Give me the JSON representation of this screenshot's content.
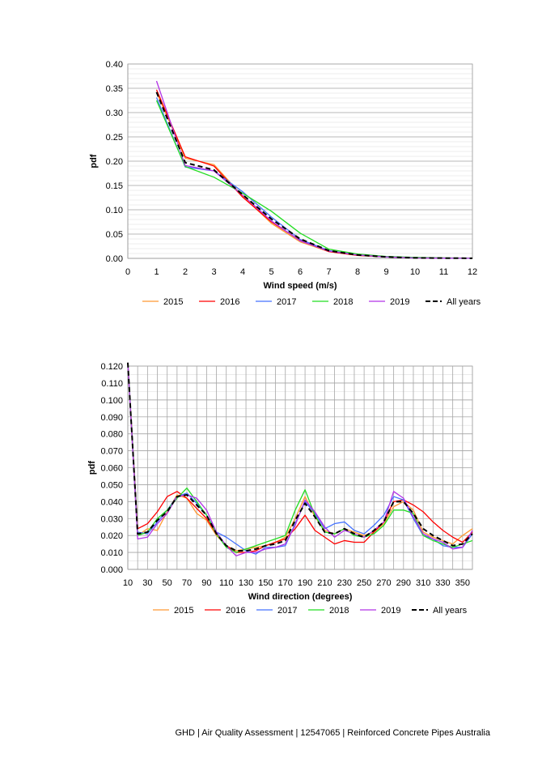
{
  "chart_data": [
    {
      "type": "line",
      "xlabel": "Wind speed (m/s)",
      "ylabel": "pdf",
      "xlim": [
        0,
        12
      ],
      "ylim": [
        0,
        0.4
      ],
      "x_ticks": [
        "0",
        "1",
        "2",
        "3",
        "4",
        "5",
        "6",
        "7",
        "8",
        "9",
        "10",
        "11",
        "12"
      ],
      "y_ticks": [
        "0.00",
        "0.05",
        "0.10",
        "0.15",
        "0.20",
        "0.25",
        "0.30",
        "0.35",
        "0.40"
      ],
      "grid": true,
      "legend_position": "bottom",
      "x": [
        1,
        2,
        3,
        4,
        5,
        6,
        7,
        8,
        9,
        10,
        11,
        12
      ],
      "series": [
        {
          "name": "2015",
          "color": "#FF9933",
          "dash": false,
          "values": [
            0.342,
            0.206,
            0.193,
            0.128,
            0.072,
            0.034,
            0.014,
            0.006,
            0.003,
            0.001,
            0.0005,
            0.0002
          ]
        },
        {
          "name": "2016",
          "color": "#FF0000",
          "dash": false,
          "values": [
            0.347,
            0.209,
            0.19,
            0.126,
            0.075,
            0.037,
            0.014,
            0.006,
            0.003,
            0.001,
            0.0005,
            0.0002
          ]
        },
        {
          "name": "2017",
          "color": "#4472FF",
          "dash": false,
          "values": [
            0.331,
            0.188,
            0.18,
            0.137,
            0.085,
            0.039,
            0.016,
            0.007,
            0.003,
            0.001,
            0.0005,
            0.0002
          ]
        },
        {
          "name": "2018",
          "color": "#22DD22",
          "dash": false,
          "values": [
            0.325,
            0.189,
            0.167,
            0.134,
            0.097,
            0.052,
            0.019,
            0.009,
            0.004,
            0.002,
            0.001,
            0.0003
          ]
        },
        {
          "name": "2019",
          "color": "#B233E6",
          "dash": false,
          "values": [
            0.365,
            0.191,
            0.18,
            0.13,
            0.077,
            0.036,
            0.015,
            0.007,
            0.003,
            0.001,
            0.0005,
            0.0002
          ]
        },
        {
          "name": "All years",
          "color": "#000000",
          "dash": true,
          "values": [
            0.342,
            0.197,
            0.182,
            0.131,
            0.081,
            0.04,
            0.016,
            0.007,
            0.003,
            0.001,
            0.0005,
            0.0002
          ]
        }
      ]
    },
    {
      "type": "line",
      "xlabel": "Wind direction (degrees)",
      "ylabel": "pdf",
      "xlim": [
        10,
        360
      ],
      "ylim": [
        0,
        0.12
      ],
      "x_ticks": [
        "10",
        "30",
        "50",
        "70",
        "90",
        "110",
        "130",
        "150",
        "170",
        "190",
        "210",
        "230",
        "250",
        "270",
        "290",
        "310",
        "330",
        "350"
      ],
      "y_ticks": [
        "0.000",
        "0.010",
        "0.020",
        "0.030",
        "0.040",
        "0.050",
        "0.060",
        "0.070",
        "0.080",
        "0.090",
        "0.100",
        "0.110",
        "0.120"
      ],
      "grid": true,
      "legend_position": "bottom",
      "x": [
        10,
        20,
        30,
        40,
        50,
        60,
        70,
        80,
        90,
        100,
        110,
        120,
        130,
        140,
        150,
        160,
        170,
        180,
        190,
        200,
        210,
        220,
        230,
        240,
        250,
        260,
        270,
        280,
        290,
        300,
        310,
        320,
        330,
        340,
        350,
        360
      ],
      "series": [
        {
          "name": "2015",
          "color": "#FF9933",
          "dash": false,
          "values": [
            0.122,
            0.02,
            0.024,
            0.023,
            0.034,
            0.044,
            0.042,
            0.033,
            0.029,
            0.02,
            0.014,
            0.011,
            0.012,
            0.013,
            0.014,
            0.016,
            0.019,
            0.03,
            0.043,
            0.031,
            0.023,
            0.021,
            0.024,
            0.022,
            0.02,
            0.022,
            0.027,
            0.037,
            0.04,
            0.035,
            0.022,
            0.019,
            0.017,
            0.015,
            0.02,
            0.024
          ]
        },
        {
          "name": "2016",
          "color": "#FF0000",
          "dash": false,
          "values": [
            0.122,
            0.024,
            0.027,
            0.034,
            0.043,
            0.046,
            0.042,
            0.036,
            0.03,
            0.021,
            0.014,
            0.01,
            0.01,
            0.011,
            0.014,
            0.016,
            0.018,
            0.024,
            0.032,
            0.023,
            0.019,
            0.015,
            0.017,
            0.016,
            0.016,
            0.022,
            0.028,
            0.04,
            0.041,
            0.038,
            0.034,
            0.028,
            0.023,
            0.019,
            0.016,
            0.022
          ]
        },
        {
          "name": "2017",
          "color": "#4472FF",
          "dash": false,
          "values": [
            0.122,
            0.022,
            0.021,
            0.028,
            0.035,
            0.043,
            0.045,
            0.039,
            0.032,
            0.022,
            0.019,
            0.015,
            0.011,
            0.009,
            0.013,
            0.013,
            0.014,
            0.027,
            0.04,
            0.033,
            0.024,
            0.027,
            0.028,
            0.023,
            0.021,
            0.026,
            0.032,
            0.043,
            0.041,
            0.03,
            0.02,
            0.018,
            0.014,
            0.013,
            0.013,
            0.021
          ]
        },
        {
          "name": "2018",
          "color": "#22DD22",
          "dash": false,
          "values": [
            0.122,
            0.02,
            0.022,
            0.03,
            0.035,
            0.042,
            0.048,
            0.04,
            0.032,
            0.021,
            0.013,
            0.01,
            0.012,
            0.014,
            0.016,
            0.018,
            0.02,
            0.035,
            0.047,
            0.032,
            0.022,
            0.021,
            0.024,
            0.02,
            0.019,
            0.021,
            0.026,
            0.035,
            0.035,
            0.033,
            0.02,
            0.017,
            0.015,
            0.013,
            0.015,
            0.017
          ]
        },
        {
          "name": "2019",
          "color": "#B233E6",
          "dash": false,
          "values": [
            0.122,
            0.018,
            0.019,
            0.027,
            0.033,
            0.043,
            0.044,
            0.042,
            0.035,
            0.022,
            0.014,
            0.008,
            0.01,
            0.01,
            0.012,
            0.013,
            0.015,
            0.026,
            0.041,
            0.034,
            0.025,
            0.019,
            0.023,
            0.021,
            0.019,
            0.023,
            0.028,
            0.046,
            0.042,
            0.031,
            0.021,
            0.018,
            0.016,
            0.012,
            0.013,
            0.023
          ]
        },
        {
          "name": "All years",
          "color": "#000000",
          "dash": true,
          "values": [
            0.122,
            0.021,
            0.022,
            0.029,
            0.034,
            0.043,
            0.044,
            0.038,
            0.032,
            0.021,
            0.014,
            0.011,
            0.011,
            0.012,
            0.014,
            0.015,
            0.017,
            0.029,
            0.039,
            0.031,
            0.022,
            0.021,
            0.024,
            0.021,
            0.019,
            0.023,
            0.028,
            0.04,
            0.04,
            0.033,
            0.024,
            0.02,
            0.017,
            0.014,
            0.015,
            0.021
          ]
        }
      ]
    }
  ],
  "footer": {
    "text": "GHD |  Air Quality Assessment | 12547065 | Reinforced Concrete Pipes Australia"
  }
}
